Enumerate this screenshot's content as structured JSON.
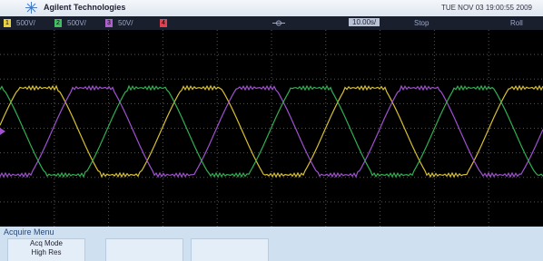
{
  "header": {
    "brand": "Agilent Technologies",
    "datetime": "TUE NOV 03 19:00:55 2009"
  },
  "status_bar": {
    "channels": [
      {
        "number": "1",
        "scale": "500V/"
      },
      {
        "number": "2",
        "scale": "500V/"
      },
      {
        "number": "3",
        "scale": "50V/"
      },
      {
        "number": "4"
      }
    ],
    "timebase": "10.00s/",
    "run_state": "Stop",
    "mode": "Roll"
  },
  "menu": {
    "title": "Acquire Menu",
    "softkeys": [
      {
        "label": "Acq Mode",
        "value": "High Res"
      }
    ]
  }
}
